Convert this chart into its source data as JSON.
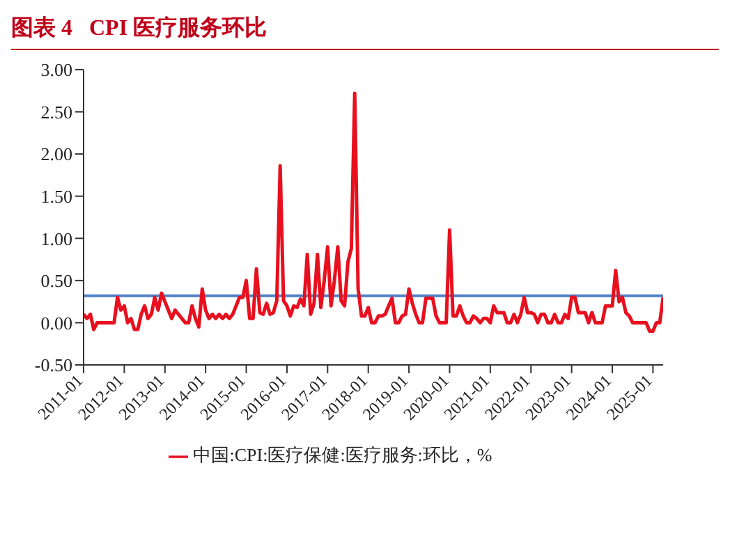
{
  "chart_data": {
    "type": "line",
    "title": "图表 4   CPI 医疗服务环比",
    "x": [
      "2011-01",
      "2011-02",
      "2011-03",
      "2011-04",
      "2011-05",
      "2011-06",
      "2011-07",
      "2011-08",
      "2011-09",
      "2011-10",
      "2011-11",
      "2011-12",
      "2012-01",
      "2012-02",
      "2012-03",
      "2012-04",
      "2012-05",
      "2012-06",
      "2012-07",
      "2012-08",
      "2012-09",
      "2012-10",
      "2012-11",
      "2012-12",
      "2013-01",
      "2013-02",
      "2013-03",
      "2013-04",
      "2013-05",
      "2013-06",
      "2013-07",
      "2013-08",
      "2013-09",
      "2013-10",
      "2013-11",
      "2013-12",
      "2014-01",
      "2014-02",
      "2014-03",
      "2014-04",
      "2014-05",
      "2014-06",
      "2014-07",
      "2014-08",
      "2014-09",
      "2014-10",
      "2014-11",
      "2014-12",
      "2015-01",
      "2015-02",
      "2015-03",
      "2015-04",
      "2015-05",
      "2015-06",
      "2015-07",
      "2015-08",
      "2015-09",
      "2015-10",
      "2015-11",
      "2015-12",
      "2016-01",
      "2016-02",
      "2016-03",
      "2016-04",
      "2016-05",
      "2016-06",
      "2016-07",
      "2016-08",
      "2016-09",
      "2016-10",
      "2016-11",
      "2016-12",
      "2017-01",
      "2017-02",
      "2017-03",
      "2017-04",
      "2017-05",
      "2017-06",
      "2017-07",
      "2017-08",
      "2017-09",
      "2017-10",
      "2017-11",
      "2017-12",
      "2018-01",
      "2018-02",
      "2018-03",
      "2018-04",
      "2018-05",
      "2018-06",
      "2018-07",
      "2018-08",
      "2018-09",
      "2018-10",
      "2018-11",
      "2018-12",
      "2019-01",
      "2019-02",
      "2019-03",
      "2019-04",
      "2019-05",
      "2019-06",
      "2019-07",
      "2019-08",
      "2019-09",
      "2019-10",
      "2019-11",
      "2019-12",
      "2020-01",
      "2020-02",
      "2020-03",
      "2020-04",
      "2020-05",
      "2020-06",
      "2020-07",
      "2020-08",
      "2020-09",
      "2020-10",
      "2020-11",
      "2020-12",
      "2021-01",
      "2021-02",
      "2021-03",
      "2021-04",
      "2021-05",
      "2021-06",
      "2021-07",
      "2021-08",
      "2021-09",
      "2021-10",
      "2021-11",
      "2021-12",
      "2022-01",
      "2022-02",
      "2022-03",
      "2022-04",
      "2022-05",
      "2022-06",
      "2022-07",
      "2022-08",
      "2022-09",
      "2022-10",
      "2022-11",
      "2022-12",
      "2023-01",
      "2023-02",
      "2023-03",
      "2023-04",
      "2023-05",
      "2023-06",
      "2023-07",
      "2023-08",
      "2023-09",
      "2023-10",
      "2023-11",
      "2023-12",
      "2024-01",
      "2024-02",
      "2024-03",
      "2024-04",
      "2024-05",
      "2024-06",
      "2024-07",
      "2024-08",
      "2024-09",
      "2024-10",
      "2024-11",
      "2024-12",
      "2025-01",
      "2025-02",
      "2025-03",
      "2025-04"
    ],
    "series": [
      {
        "name": "中国:CPI:医疗保健:医疗服务:环比，%",
        "color": "#e8101e",
        "values": [
          0.1,
          0.05,
          0.1,
          -0.08,
          0,
          0,
          0,
          0,
          0,
          0,
          0.3,
          0.15,
          0.2,
          0,
          0.05,
          -0.08,
          -0.08,
          0.1,
          0.2,
          0.05,
          0.1,
          0.3,
          0.15,
          0.35,
          0.25,
          0.15,
          0.05,
          0.15,
          0.1,
          0.05,
          0,
          0,
          0.2,
          0.05,
          -0.05,
          0.4,
          0.15,
          0.05,
          0.1,
          0.05,
          0.1,
          0.05,
          0.1,
          0.05,
          0.1,
          0.2,
          0.3,
          0.3,
          0.5,
          0.05,
          0.05,
          0.64,
          0.12,
          0.1,
          0.23,
          0.1,
          0.12,
          0.26,
          1.86,
          0.26,
          0.2,
          0.08,
          0.2,
          0.18,
          0.28,
          0.2,
          0.81,
          0.1,
          0.23,
          0.81,
          0.18,
          0.5,
          0.9,
          0.2,
          0.5,
          0.9,
          0.26,
          0.2,
          0.72,
          0.88,
          2.72,
          0.4,
          0.08,
          0.08,
          0.18,
          0,
          0,
          0.08,
          0.08,
          0.1,
          0.2,
          0.29,
          0,
          0,
          0.08,
          0.1,
          0.4,
          0.23,
          0.1,
          0,
          0,
          0.29,
          0.29,
          0.29,
          0.08,
          0,
          0,
          0,
          1.1,
          0.08,
          0.08,
          0.2,
          0.08,
          0,
          0,
          0.08,
          0.05,
          0,
          0.05,
          0.05,
          0,
          0.2,
          0.12,
          0.12,
          0.12,
          0,
          0,
          0.1,
          0,
          0.1,
          0.3,
          0.12,
          0.12,
          0.1,
          0,
          0.1,
          0.1,
          0,
          0,
          0.1,
          0,
          0,
          0.1,
          0.05,
          0.3,
          0.3,
          0.12,
          0.12,
          0.12,
          0,
          0.12,
          0,
          0,
          0,
          0.2,
          0.2,
          0.2,
          0.62,
          0.25,
          0.3,
          0.12,
          0.08,
          0,
          0,
          0,
          0,
          0,
          -0.1,
          -0.1,
          0,
          0,
          0.3
        ]
      }
    ],
    "xlim": [
      "2011-01",
      "2025-04"
    ],
    "xticks": [
      "2011-01",
      "2012-01",
      "2013-01",
      "2014-01",
      "2015-01",
      "2016-01",
      "2017-01",
      "2018-01",
      "2019-01",
      "2020-01",
      "2021-01",
      "2022-01",
      "2023-01",
      "2024-01",
      "2025-01"
    ],
    "ylim": [
      -0.5,
      3
    ],
    "yticks": [
      {
        "value": -0.5,
        "label": "-0.50"
      },
      {
        "value": 0,
        "label": "0.00"
      },
      {
        "value": 0.5,
        "label": "0.50"
      },
      {
        "value": 1,
        "label": "1.00"
      },
      {
        "value": 1.5,
        "label": "1.50"
      },
      {
        "value": 2,
        "label": "2.00"
      },
      {
        "value": 2.5,
        "label": "2.50"
      },
      {
        "value": 3,
        "label": "3.00"
      }
    ],
    "ref_lines": [
      {
        "axis": "y",
        "value": 0.32,
        "color": "#4f81c7"
      }
    ],
    "grid": false,
    "legend": "bottom",
    "marker": "none",
    "line_style": "solid"
  }
}
